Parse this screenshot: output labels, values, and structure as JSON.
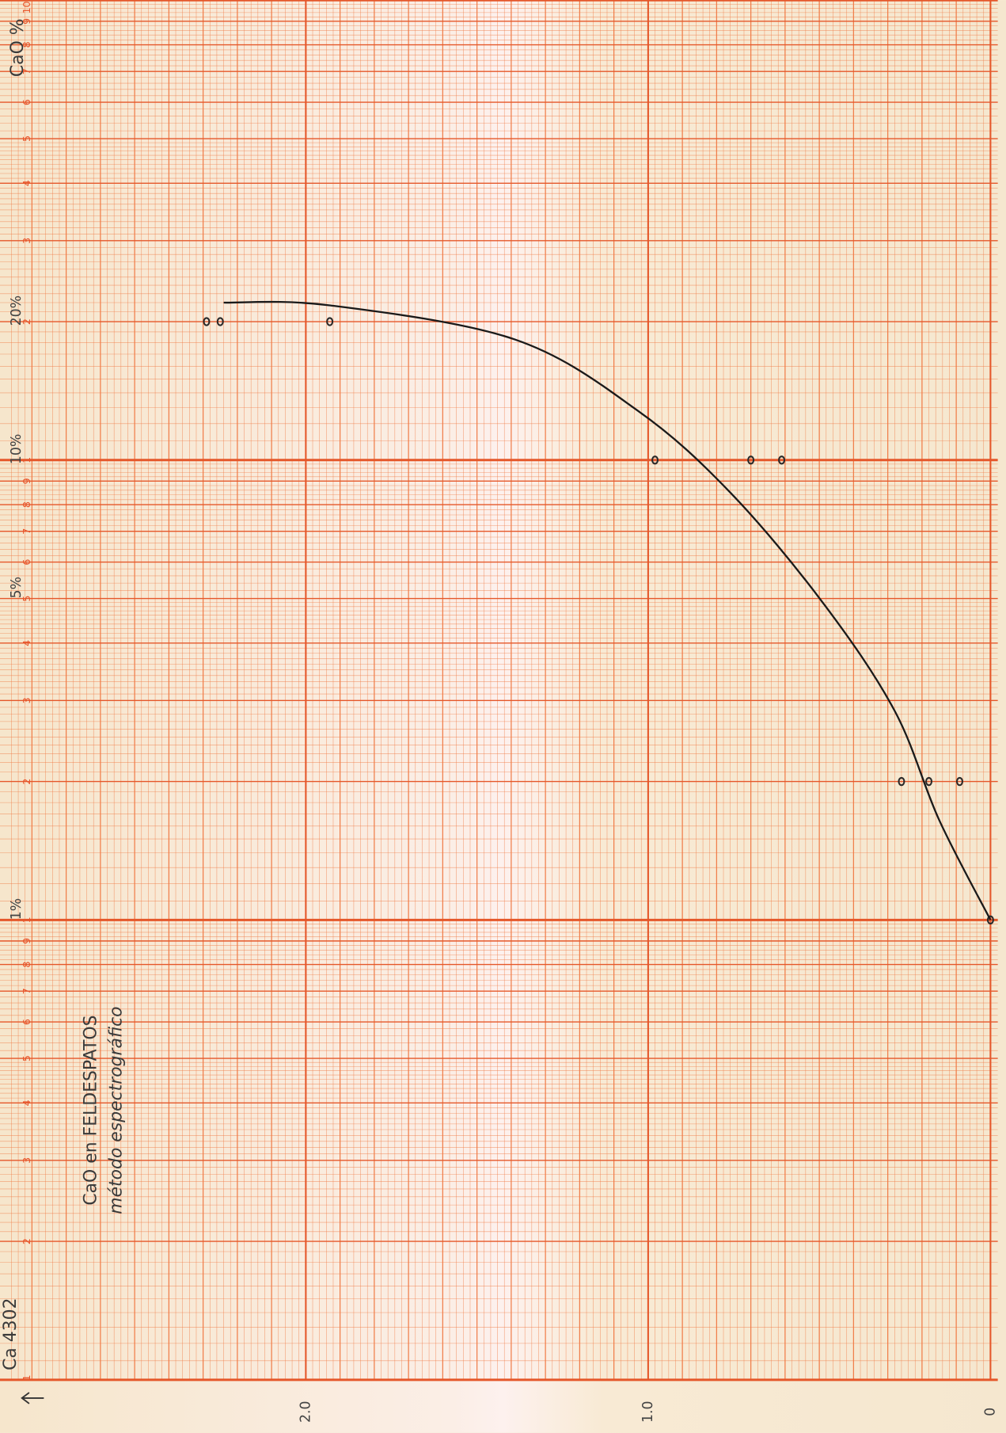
{
  "chart_data": {
    "type": "scatter",
    "title": "CaO en FELDESPATOS",
    "subtitle": "método espectrográfico",
    "xlabel": "Ca 4302",
    "ylabel": "CaO %",
    "log_y": true,
    "grid": true,
    "xlim": [
      2.8,
      0
    ],
    "xticks": [
      {
        "value": 2,
        "label": "2.0"
      },
      {
        "value": 1,
        "label": "1.0"
      },
      0
    ],
    "ylim": [
      0.1,
      100
    ],
    "yticks": [
      {
        "value": 0.1,
        "label": "1"
      },
      {
        "value": 0.2,
        "label": "2"
      },
      {
        "value": 0.3,
        "label": "3"
      },
      {
        "value": 0.4,
        "label": "4"
      },
      {
        "value": 0.5,
        "label": "5"
      },
      {
        "value": 0.6,
        "label": "6"
      },
      {
        "value": 0.7,
        "label": "7"
      },
      {
        "value": 0.8,
        "label": "8"
      },
      {
        "value": 0.9,
        "label": "9"
      },
      1,
      2,
      3,
      4,
      5,
      6,
      7,
      8,
      9,
      {
        "value": 10,
        "label": "1"
      },
      {
        "value": 20,
        "label": "2"
      },
      {
        "value": 30,
        "label": "3"
      },
      {
        "value": 40,
        "label": "4"
      },
      {
        "value": 50,
        "label": "5"
      },
      {
        "value": 60,
        "label": "6"
      },
      {
        "value": 70,
        "label": "7"
      },
      {
        "value": 80,
        "label": "8"
      },
      {
        "value": 90,
        "label": "9"
      },
      {
        "value": 100,
        "label": "10"
      }
    ],
    "y_annotations": [
      {
        "value": 1,
        "label": "1%"
      },
      {
        "value": 5,
        "label": "5%"
      },
      {
        "value": 10,
        "label": "10%"
      },
      {
        "value": 20,
        "label": "20%"
      }
    ],
    "series": [
      {
        "type": "scatter",
        "color": "#2a2a2a",
        "x": [
          2.29,
          2.25,
          1.93,
          0.98,
          0.7,
          0.61,
          0.26,
          0.18,
          0.09,
          0
        ],
        "values": [
          20,
          20,
          20,
          10,
          10,
          10,
          2,
          2,
          2,
          1
        ]
      },
      {
        "type": "line",
        "color": "#1a1a1a",
        "x": [
          2.24,
          1.93,
          1.39,
          1.03,
          0.76,
          0.49,
          0.28,
          0.15,
          0
        ],
        "values": [
          22,
          21.7,
          18.3,
          12.8,
          8.5,
          4.9,
          2.85,
          1.65,
          1
        ]
      }
    ]
  }
}
